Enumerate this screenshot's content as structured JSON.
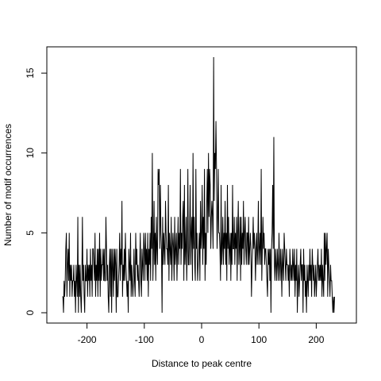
{
  "chart_data": {
    "type": "line",
    "title": "",
    "xlabel": "Distance to peak centre",
    "ylabel": "Number of motif occurrences",
    "xlim": [
      -250,
      250
    ],
    "ylim": [
      0,
      16
    ],
    "x_ticks": [
      -200,
      -100,
      0,
      100,
      200
    ],
    "y_ticks": [
      0,
      5,
      10,
      15
    ],
    "x_tick_labels": [
      "-200",
      "-100",
      "0",
      "100",
      "200"
    ],
    "y_tick_labels": [
      "0",
      "5",
      "10",
      "15"
    ],
    "grid": false,
    "legend": "none",
    "line_color": "#000000",
    "series": [
      {
        "x_start": -243,
        "x_step": 1,
        "values": [
          1,
          1,
          0,
          2,
          1,
          2,
          4,
          5,
          1,
          3,
          4,
          2,
          5,
          1,
          3,
          2,
          3,
          1,
          2,
          2,
          3,
          1,
          2,
          0,
          3,
          2,
          1,
          6,
          0,
          3,
          1,
          3,
          1,
          0,
          2,
          6,
          2,
          3,
          1,
          0,
          3,
          2,
          2,
          4,
          1,
          3,
          2,
          3,
          1,
          4,
          2,
          3,
          1,
          4,
          4,
          3,
          2,
          5,
          1,
          3,
          2,
          4,
          1,
          4,
          2,
          5,
          1,
          4,
          2,
          3,
          3,
          4,
          2,
          4,
          2,
          2,
          6,
          4,
          2,
          3,
          1,
          0,
          3,
          4,
          1,
          4,
          0,
          4,
          3,
          1,
          4,
          2,
          4,
          3,
          0,
          4,
          1,
          1,
          2,
          3,
          5,
          2,
          4,
          3,
          7,
          1,
          3,
          2,
          4,
          2,
          5,
          3,
          2,
          1,
          2,
          0,
          4,
          3,
          2,
          5,
          1,
          3,
          2,
          1,
          2,
          4,
          2,
          1,
          5,
          3,
          4,
          2,
          3,
          2,
          1,
          3,
          5,
          2,
          1,
          4,
          3,
          2,
          5,
          4,
          2,
          5,
          3,
          4,
          2,
          5,
          1,
          4,
          3,
          5,
          2,
          6,
          4,
          10,
          2,
          4,
          7,
          3,
          5,
          2,
          6,
          4,
          3,
          9,
          8,
          9,
          4,
          8,
          5,
          4,
          0,
          6,
          3,
          5,
          4,
          3,
          7,
          5,
          4,
          4,
          3,
          8,
          2,
          5,
          4,
          3,
          6,
          2,
          4,
          5,
          4,
          2,
          6,
          3,
          4,
          5,
          2,
          4,
          6,
          3,
          5,
          4,
          9,
          3,
          5,
          4,
          6,
          7,
          2,
          8,
          3,
          4,
          6,
          2,
          4,
          9,
          3,
          3,
          5,
          8,
          3,
          5,
          6,
          2,
          10,
          4,
          6,
          3,
          2,
          9,
          4,
          5,
          2,
          3,
          4,
          5,
          2,
          7,
          4,
          5,
          8,
          3,
          6,
          4,
          9,
          2,
          5,
          3,
          7,
          9,
          5,
          10,
          6,
          9,
          8,
          4,
          6,
          7,
          6,
          4,
          16,
          7,
          10,
          9,
          12,
          9,
          4,
          6,
          9,
          5,
          5,
          4,
          2,
          8,
          3,
          4,
          6,
          3,
          5,
          4,
          7,
          3,
          5,
          2,
          8,
          4,
          6,
          3,
          4,
          5,
          2,
          5,
          3,
          8,
          4,
          4,
          6,
          3,
          5,
          4,
          6,
          2,
          5,
          7,
          3,
          4,
          6,
          2,
          6,
          3,
          5,
          4,
          7,
          3,
          5,
          6,
          4,
          3,
          5,
          5,
          3,
          6,
          3,
          4,
          5,
          4,
          1,
          3,
          4,
          6,
          4,
          5,
          4,
          2,
          4,
          5,
          3,
          4,
          7,
          3,
          4,
          5,
          3,
          9,
          2,
          4,
          6,
          4,
          5,
          3,
          4,
          4,
          3,
          2,
          1,
          4,
          3,
          4,
          2,
          4,
          0,
          4,
          5,
          8,
          4,
          11,
          3,
          2,
          4,
          3,
          2,
          4,
          3,
          2,
          5,
          3,
          2,
          4,
          3,
          1,
          4,
          3,
          2,
          5,
          4,
          3,
          2,
          4,
          3,
          3,
          2,
          3,
          1,
          4,
          3,
          2,
          3,
          2,
          4,
          3,
          2,
          4,
          1,
          3,
          2,
          4,
          0,
          2,
          3,
          1,
          2,
          3,
          4,
          2,
          3,
          3,
          0,
          4,
          2,
          3,
          1,
          2,
          0,
          3,
          2,
          1,
          3,
          2,
          4,
          2,
          3,
          1,
          4,
          3,
          2,
          3,
          1,
          2,
          3,
          1,
          2,
          3,
          4,
          2,
          3,
          2,
          3,
          2,
          4,
          1,
          3,
          2,
          1,
          5,
          2,
          5,
          3,
          4,
          5,
          1,
          4,
          3,
          2,
          1,
          3,
          2,
          2,
          1,
          0,
          1,
          0,
          1
        ]
      }
    ]
  }
}
